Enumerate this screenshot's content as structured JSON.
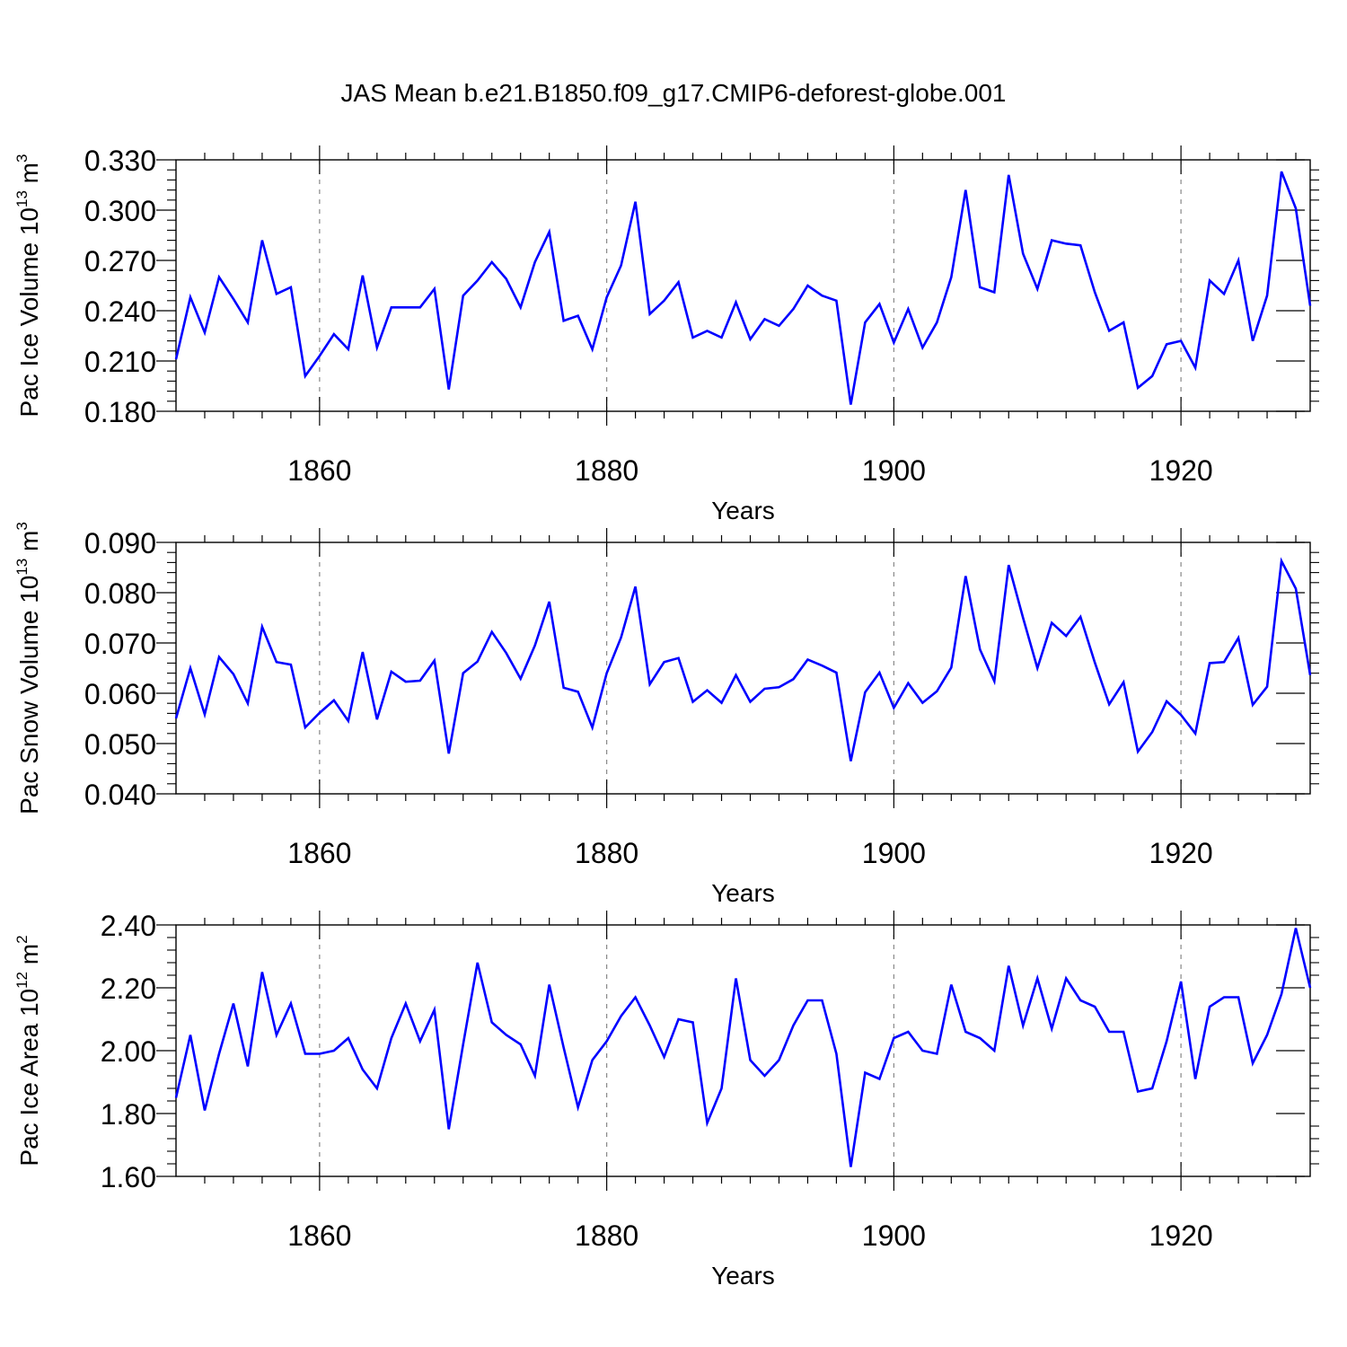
{
  "title": "JAS Mean b.e21.B1850.f09_g17.CMIP6-deforest-globe.001",
  "colors": {
    "line": "#0000ff",
    "axis": "#000000",
    "grid": "#888888"
  },
  "chart_data": [
    {
      "type": "line",
      "name": "pac-ice-volume",
      "ylabel": {
        "text": "Pac Ice Volume 10",
        "exp": "13",
        "unit_text": " m",
        "unit_exp": "3"
      },
      "xlabel": "Years",
      "xlim": [
        1850,
        1929
      ],
      "ylim": [
        0.18,
        0.33
      ],
      "yticks": [
        "0.180",
        "0.210",
        "0.240",
        "0.270",
        "0.300",
        "0.330"
      ],
      "xticks": [
        "1860",
        "1880",
        "1900",
        "1920"
      ],
      "x_start": 1850,
      "values": [
        0.211,
        0.248,
        0.227,
        0.26,
        0.247,
        0.233,
        0.282,
        0.25,
        0.254,
        0.201,
        0.213,
        0.226,
        0.217,
        0.261,
        0.218,
        0.242,
        0.242,
        0.242,
        0.253,
        0.193,
        0.249,
        0.258,
        0.269,
        0.259,
        0.242,
        0.269,
        0.287,
        0.234,
        0.237,
        0.217,
        0.248,
        0.267,
        0.305,
        0.238,
        0.246,
        0.257,
        0.224,
        0.228,
        0.224,
        0.245,
        0.223,
        0.235,
        0.231,
        0.241,
        0.255,
        0.249,
        0.246,
        0.184,
        0.233,
        0.244,
        0.221,
        0.241,
        0.218,
        0.233,
        0.26,
        0.312,
        0.254,
        0.251,
        0.321,
        0.274,
        0.253,
        0.282,
        0.28,
        0.279,
        0.251,
        0.228,
        0.233,
        0.194,
        0.201,
        0.22,
        0.222,
        0.206,
        0.258,
        0.25,
        0.27,
        0.222,
        0.249,
        0.323,
        0.301,
        0.243
      ]
    },
    {
      "type": "line",
      "name": "pac-snow-volume",
      "ylabel": {
        "text": "Pac Snow Volume 10",
        "exp": "13",
        "unit_text": " m",
        "unit_exp": "3"
      },
      "xlabel": "Years",
      "xlim": [
        1850,
        1929
      ],
      "ylim": [
        0.04,
        0.09
      ],
      "yticks": [
        "0.040",
        "0.050",
        "0.060",
        "0.070",
        "0.080",
        "0.090"
      ],
      "xticks": [
        "1860",
        "1880",
        "1900",
        "1920"
      ],
      "x_start": 1850,
      "values": [
        0.055,
        0.065,
        0.0558,
        0.0672,
        0.0638,
        0.058,
        0.0732,
        0.0662,
        0.0657,
        0.0532,
        0.0561,
        0.0586,
        0.0545,
        0.0682,
        0.0548,
        0.0643,
        0.0623,
        0.0625,
        0.0665,
        0.048,
        0.064,
        0.0663,
        0.0722,
        0.068,
        0.0629,
        0.0695,
        0.0782,
        0.0611,
        0.0603,
        0.0532,
        0.064,
        0.0711,
        0.0812,
        0.0618,
        0.0662,
        0.067,
        0.0583,
        0.0606,
        0.0581,
        0.0636,
        0.0583,
        0.0609,
        0.0612,
        0.0628,
        0.0667,
        0.0655,
        0.0641,
        0.0465,
        0.0602,
        0.0641,
        0.0571,
        0.062,
        0.0581,
        0.0604,
        0.0651,
        0.0833,
        0.0687,
        0.0624,
        0.0855,
        0.075,
        0.065,
        0.074,
        0.0714,
        0.0752,
        0.0661,
        0.0578,
        0.0622,
        0.0484,
        0.0523,
        0.0584,
        0.0557,
        0.052,
        0.066,
        0.0662,
        0.071,
        0.0577,
        0.0613,
        0.0863,
        0.0808,
        0.0636
      ]
    },
    {
      "type": "line",
      "name": "pac-ice-area",
      "ylabel": {
        "text": "Pac Ice Area 10",
        "exp": "12",
        "unit_text": " m",
        "unit_exp": "2"
      },
      "xlabel": "Years",
      "xlim": [
        1850,
        1929
      ],
      "ylim": [
        1.6,
        2.4
      ],
      "yticks": [
        "1.60",
        "1.80",
        "2.00",
        "2.20",
        "2.40"
      ],
      "xticks": [
        "1860",
        "1880",
        "1900",
        "1920"
      ],
      "x_start": 1850,
      "values": [
        1.85,
        2.05,
        1.81,
        1.99,
        2.15,
        1.95,
        2.25,
        2.05,
        2.15,
        1.99,
        1.99,
        2.0,
        2.04,
        1.94,
        1.88,
        2.04,
        2.15,
        2.03,
        2.13,
        1.75,
        2.02,
        2.28,
        2.09,
        2.05,
        2.02,
        1.92,
        2.21,
        2.01,
        1.82,
        1.97,
        2.03,
        2.11,
        2.17,
        2.08,
        1.98,
        2.1,
        2.09,
        1.77,
        1.88,
        2.23,
        1.97,
        1.92,
        1.97,
        2.08,
        2.16,
        2.16,
        1.99,
        1.63,
        1.93,
        1.91,
        2.04,
        2.06,
        2.0,
        1.99,
        2.21,
        2.06,
        2.04,
        2.0,
        2.27,
        2.08,
        2.23,
        2.07,
        2.23,
        2.16,
        2.14,
        2.06,
        2.06,
        1.87,
        1.88,
        2.03,
        2.22,
        1.91,
        2.14,
        2.17,
        2.17,
        1.96,
        2.05,
        2.18,
        2.39,
        2.2
      ]
    }
  ]
}
